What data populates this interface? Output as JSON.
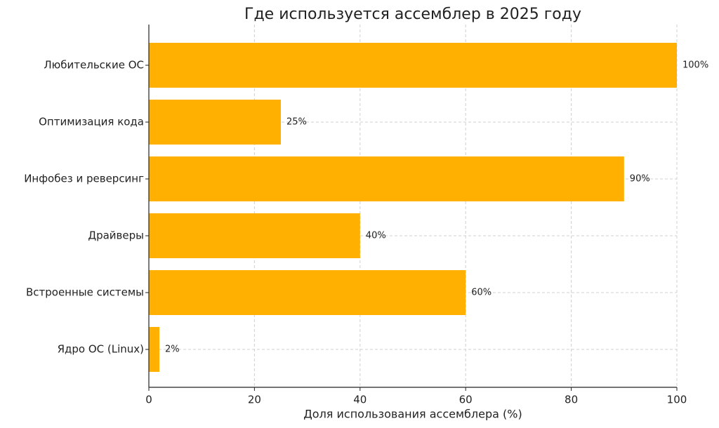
{
  "chart_data": {
    "type": "barh",
    "title": "Где используется ассемблер в 2025 году",
    "x_label": "Доля использования ассемблера (%)",
    "categories": [
      "Любительские ОС",
      "Оптимизация кода",
      "Инфобез и реверсинг",
      "Драйверы",
      "Встроенные системы",
      "Ядро ОС (Linux)"
    ],
    "values": [
      100,
      25,
      90,
      40,
      60,
      2
    ],
    "value_labels": [
      "100%",
      "25%",
      "90%",
      "40%",
      "60%",
      "2%"
    ],
    "color": "#ffb000",
    "xlim": [
      0,
      100
    ],
    "xticks": [
      0,
      20,
      40,
      60,
      80,
      100
    ],
    "grid": true
  }
}
